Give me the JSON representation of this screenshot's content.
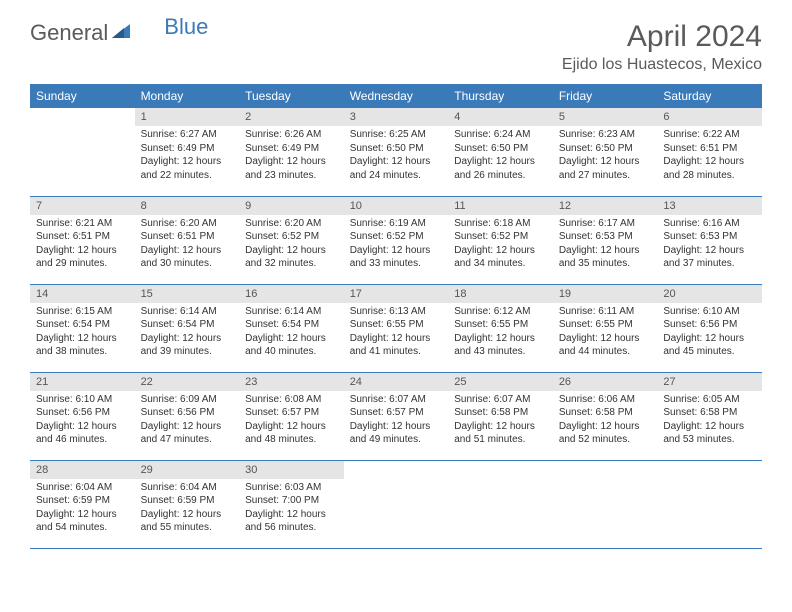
{
  "logo": {
    "text1": "General",
    "text2": "Blue",
    "icon_color": "#3a7ab8"
  },
  "header": {
    "month_title": "April 2024",
    "location": "Ejido los Huastecos, Mexico"
  },
  "colors": {
    "header_bg": "#3a7ab8",
    "header_text": "#ffffff",
    "day_header_bg": "#e5e5e5",
    "border": "#3a7ab8",
    "text": "#333333"
  },
  "day_names": [
    "Sunday",
    "Monday",
    "Tuesday",
    "Wednesday",
    "Thursday",
    "Friday",
    "Saturday"
  ],
  "weeks": [
    [
      null,
      {
        "n": "1",
        "sunrise": "6:27 AM",
        "sunset": "6:49 PM",
        "daylight": "12 hours and 22 minutes."
      },
      {
        "n": "2",
        "sunrise": "6:26 AM",
        "sunset": "6:49 PM",
        "daylight": "12 hours and 23 minutes."
      },
      {
        "n": "3",
        "sunrise": "6:25 AM",
        "sunset": "6:50 PM",
        "daylight": "12 hours and 24 minutes."
      },
      {
        "n": "4",
        "sunrise": "6:24 AM",
        "sunset": "6:50 PM",
        "daylight": "12 hours and 26 minutes."
      },
      {
        "n": "5",
        "sunrise": "6:23 AM",
        "sunset": "6:50 PM",
        "daylight": "12 hours and 27 minutes."
      },
      {
        "n": "6",
        "sunrise": "6:22 AM",
        "sunset": "6:51 PM",
        "daylight": "12 hours and 28 minutes."
      }
    ],
    [
      {
        "n": "7",
        "sunrise": "6:21 AM",
        "sunset": "6:51 PM",
        "daylight": "12 hours and 29 minutes."
      },
      {
        "n": "8",
        "sunrise": "6:20 AM",
        "sunset": "6:51 PM",
        "daylight": "12 hours and 30 minutes."
      },
      {
        "n": "9",
        "sunrise": "6:20 AM",
        "sunset": "6:52 PM",
        "daylight": "12 hours and 32 minutes."
      },
      {
        "n": "10",
        "sunrise": "6:19 AM",
        "sunset": "6:52 PM",
        "daylight": "12 hours and 33 minutes."
      },
      {
        "n": "11",
        "sunrise": "6:18 AM",
        "sunset": "6:52 PM",
        "daylight": "12 hours and 34 minutes."
      },
      {
        "n": "12",
        "sunrise": "6:17 AM",
        "sunset": "6:53 PM",
        "daylight": "12 hours and 35 minutes."
      },
      {
        "n": "13",
        "sunrise": "6:16 AM",
        "sunset": "6:53 PM",
        "daylight": "12 hours and 37 minutes."
      }
    ],
    [
      {
        "n": "14",
        "sunrise": "6:15 AM",
        "sunset": "6:54 PM",
        "daylight": "12 hours and 38 minutes."
      },
      {
        "n": "15",
        "sunrise": "6:14 AM",
        "sunset": "6:54 PM",
        "daylight": "12 hours and 39 minutes."
      },
      {
        "n": "16",
        "sunrise": "6:14 AM",
        "sunset": "6:54 PM",
        "daylight": "12 hours and 40 minutes."
      },
      {
        "n": "17",
        "sunrise": "6:13 AM",
        "sunset": "6:55 PM",
        "daylight": "12 hours and 41 minutes."
      },
      {
        "n": "18",
        "sunrise": "6:12 AM",
        "sunset": "6:55 PM",
        "daylight": "12 hours and 43 minutes."
      },
      {
        "n": "19",
        "sunrise": "6:11 AM",
        "sunset": "6:55 PM",
        "daylight": "12 hours and 44 minutes."
      },
      {
        "n": "20",
        "sunrise": "6:10 AM",
        "sunset": "6:56 PM",
        "daylight": "12 hours and 45 minutes."
      }
    ],
    [
      {
        "n": "21",
        "sunrise": "6:10 AM",
        "sunset": "6:56 PM",
        "daylight": "12 hours and 46 minutes."
      },
      {
        "n": "22",
        "sunrise": "6:09 AM",
        "sunset": "6:56 PM",
        "daylight": "12 hours and 47 minutes."
      },
      {
        "n": "23",
        "sunrise": "6:08 AM",
        "sunset": "6:57 PM",
        "daylight": "12 hours and 48 minutes."
      },
      {
        "n": "24",
        "sunrise": "6:07 AM",
        "sunset": "6:57 PM",
        "daylight": "12 hours and 49 minutes."
      },
      {
        "n": "25",
        "sunrise": "6:07 AM",
        "sunset": "6:58 PM",
        "daylight": "12 hours and 51 minutes."
      },
      {
        "n": "26",
        "sunrise": "6:06 AM",
        "sunset": "6:58 PM",
        "daylight": "12 hours and 52 minutes."
      },
      {
        "n": "27",
        "sunrise": "6:05 AM",
        "sunset": "6:58 PM",
        "daylight": "12 hours and 53 minutes."
      }
    ],
    [
      {
        "n": "28",
        "sunrise": "6:04 AM",
        "sunset": "6:59 PM",
        "daylight": "12 hours and 54 minutes."
      },
      {
        "n": "29",
        "sunrise": "6:04 AM",
        "sunset": "6:59 PM",
        "daylight": "12 hours and 55 minutes."
      },
      {
        "n": "30",
        "sunrise": "6:03 AM",
        "sunset": "7:00 PM",
        "daylight": "12 hours and 56 minutes."
      },
      null,
      null,
      null,
      null
    ]
  ],
  "labels": {
    "sunrise": "Sunrise:",
    "sunset": "Sunset:",
    "daylight": "Daylight:"
  }
}
